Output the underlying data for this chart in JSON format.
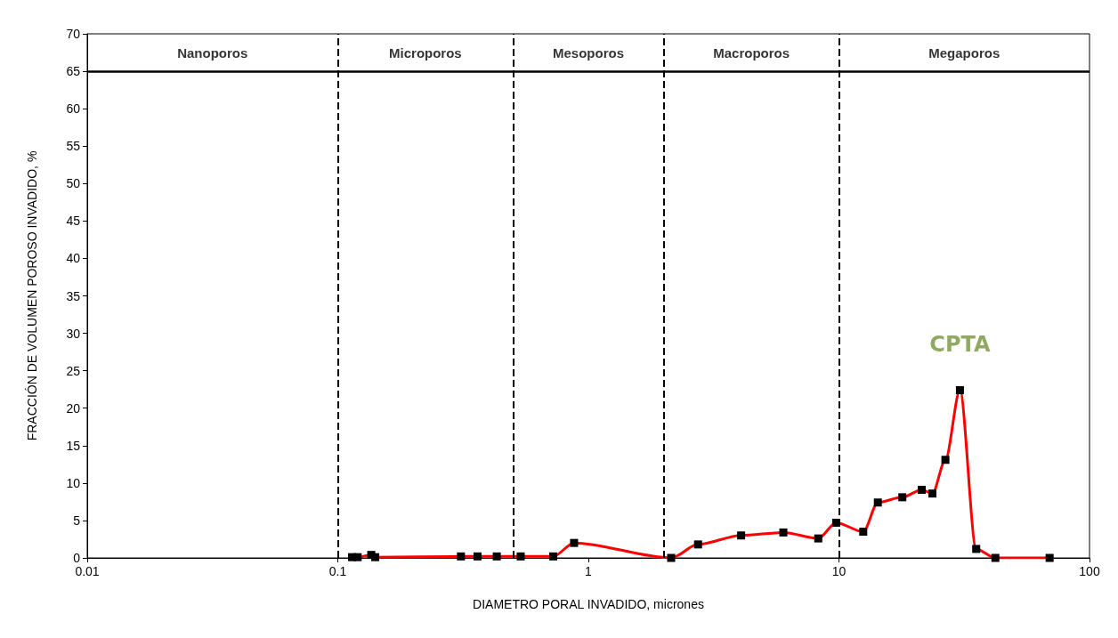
{
  "chart_data": {
    "type": "line",
    "xlabel": "DIAMETRO PORAL INVADIDO, micrones",
    "ylabel": "FRACCIÓN DE VOLUMEN POROSO INVADIDO, %",
    "log": "x",
    "xlim": [
      0.01,
      100
    ],
    "xticks": [
      0.01,
      0.1,
      1,
      10,
      100
    ],
    "ylim": [
      0,
      70
    ],
    "yticks": [
      0,
      5,
      10,
      15,
      20,
      25,
      30,
      35,
      40,
      45,
      50,
      55,
      60,
      65,
      70
    ],
    "grid": false,
    "marker": "square",
    "line_style": "solid",
    "series": [
      {
        "color": "#ff0000",
        "x": [
          0.114,
          0.12,
          0.136,
          0.141,
          0.31,
          0.361,
          0.431,
          0.537,
          0.724,
          0.877,
          2.14,
          2.74,
          4.07,
          6.0,
          8.27,
          9.75,
          12.5,
          14.3,
          17.9,
          21.4,
          23.6,
          26.6,
          30.4,
          35.3,
          42.1,
          69.3
        ],
        "values": [
          0.1,
          0.1,
          0.4,
          0.1,
          0.2,
          0.2,
          0.2,
          0.2,
          0.2,
          2.0,
          0,
          1.8,
          3.0,
          3.4,
          2.6,
          4.7,
          3.5,
          7.4,
          8.1,
          9.1,
          8.6,
          13.1,
          22.4,
          1.2,
          0,
          0
        ]
      }
    ],
    "ref_lines": [
      {
        "axis": "x",
        "value": 0.1,
        "line_style": "dashed"
      },
      {
        "axis": "x",
        "value": 0.5,
        "line_style": "dashed"
      },
      {
        "axis": "x",
        "value": 2,
        "line_style": "dashed"
      },
      {
        "axis": "x",
        "value": 10,
        "line_style": "dashed"
      },
      {
        "axis": "y",
        "value": 65,
        "line_style": "solid"
      }
    ],
    "annotations": [
      "Nanoporos",
      "Microporos",
      "Mesoporos",
      "Macroporos",
      "Megaporos",
      "CPTA"
    ]
  }
}
